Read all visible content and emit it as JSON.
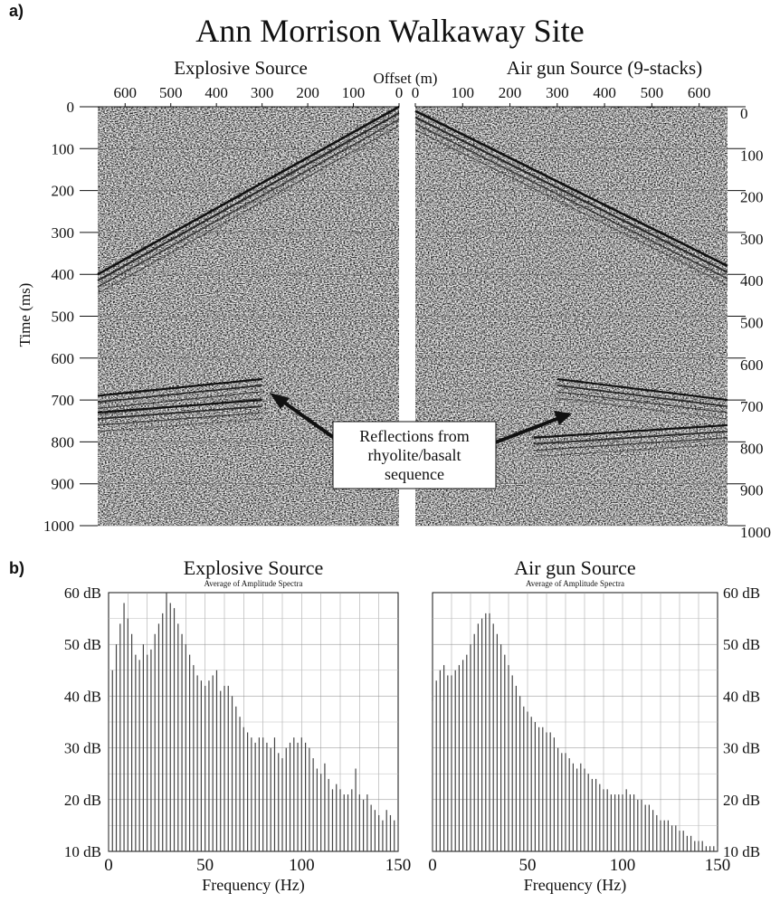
{
  "panel_a": {
    "label": "a)",
    "title": "Ann Morrison Walkaway Site",
    "left_title": "Explosive Source",
    "right_title": "Air gun Source (9-stacks)",
    "offset_label": "Offset (m)",
    "time_label": "Time (ms)",
    "annotation": [
      "Reflections from",
      "rhyolite/basalt",
      "sequence"
    ]
  },
  "panel_b": {
    "label": "b)"
  },
  "chart_data": [
    {
      "type": "heatmap",
      "title": "Explosive Source",
      "xlabel": "Offset (m)",
      "ylabel": "Time (ms)",
      "x_ticks": [
        "600",
        "500",
        "400",
        "300",
        "200",
        "100",
        "0"
      ],
      "y_ticks": [
        "0",
        "100",
        "200",
        "300",
        "400",
        "500",
        "600",
        "700",
        "800",
        "900",
        "1000"
      ],
      "xlim": [
        660,
        0
      ],
      "ylim": [
        0,
        1000
      ],
      "grid": true,
      "events": [
        {
          "kind": "first-arrival",
          "points": [
            [
              0,
              0
            ],
            [
              660,
              400
            ]
          ]
        },
        {
          "kind": "reflection",
          "points": [
            [
              660,
              690
            ],
            [
              300,
              650
            ]
          ]
        },
        {
          "kind": "reflection",
          "points": [
            [
              660,
              730
            ],
            [
              300,
              700
            ]
          ]
        }
      ]
    },
    {
      "type": "heatmap",
      "title": "Air gun Source (9-stacks)",
      "xlabel": "Offset (m)",
      "ylabel": "Time (ms)",
      "x_ticks": [
        "0",
        "100",
        "200",
        "300",
        "400",
        "500",
        "600"
      ],
      "y_ticks": [
        "0",
        "100",
        "200",
        "300",
        "400",
        "500",
        "600",
        "700",
        "800",
        "900",
        "1000"
      ],
      "xlim": [
        0,
        660
      ],
      "ylim": [
        0,
        1000
      ],
      "grid": true,
      "events": [
        {
          "kind": "first-arrival",
          "points": [
            [
              0,
              10
            ],
            [
              660,
              380
            ]
          ]
        },
        {
          "kind": "reflection",
          "points": [
            [
              300,
              650
            ],
            [
              660,
              700
            ]
          ]
        },
        {
          "kind": "reflection",
          "points": [
            [
              250,
              790
            ],
            [
              660,
              760
            ]
          ]
        }
      ]
    },
    {
      "type": "bar",
      "title": "Explosive Source",
      "subtitle": "Average of Amplitude Spectra",
      "xlabel": "Frequency (Hz)",
      "ylabel": "",
      "xlim": [
        0,
        150
      ],
      "ylim": [
        10,
        60
      ],
      "x_ticks": [
        "0",
        "50",
        "100",
        "150"
      ],
      "y_ticks": [
        "10 dB",
        "20 dB",
        "30 dB",
        "40 dB",
        "50 dB",
        "60 dB"
      ],
      "grid": true,
      "x": [
        0,
        2,
        4,
        6,
        8,
        10,
        12,
        14,
        16,
        18,
        20,
        22,
        24,
        26,
        28,
        30,
        32,
        34,
        36,
        38,
        40,
        42,
        44,
        46,
        48,
        50,
        52,
        54,
        56,
        58,
        60,
        62,
        64,
        66,
        68,
        70,
        72,
        74,
        76,
        78,
        80,
        82,
        84,
        86,
        88,
        90,
        92,
        94,
        96,
        98,
        100,
        102,
        104,
        106,
        108,
        110,
        112,
        114,
        116,
        118,
        120,
        122,
        124,
        126,
        128,
        130,
        132,
        134,
        136,
        138,
        140,
        142,
        144,
        146,
        148,
        150
      ],
      "values": [
        39,
        45,
        50,
        54,
        58,
        55,
        52,
        48,
        47,
        50,
        48,
        49,
        52,
        54,
        56,
        60,
        58,
        57,
        54,
        52,
        50,
        48,
        46,
        44,
        43,
        42,
        43,
        44,
        45,
        41,
        42,
        42,
        40,
        38,
        36,
        34,
        33,
        32,
        31,
        32,
        32,
        31,
        30,
        32,
        29,
        28,
        30,
        31,
        32,
        31,
        32,
        31,
        30,
        28,
        26,
        25,
        27,
        24,
        22,
        23,
        22,
        21,
        21,
        22,
        26,
        21,
        20,
        21,
        19,
        18,
        17,
        16,
        18,
        17,
        16,
        16
      ],
      "units": "dB"
    },
    {
      "type": "bar",
      "title": "Air gun Source",
      "subtitle": "Average of Amplitude Spectra",
      "xlabel": "Frequency (Hz)",
      "ylabel": "",
      "xlim": [
        0,
        150
      ],
      "ylim": [
        10,
        60
      ],
      "x_ticks": [
        "0",
        "50",
        "100",
        "150"
      ],
      "y_ticks": [
        "10 dB",
        "20 dB",
        "30 dB",
        "40 dB",
        "50 dB",
        "60 dB"
      ],
      "grid": true,
      "x": [
        0,
        2,
        4,
        6,
        8,
        10,
        12,
        14,
        16,
        18,
        20,
        22,
        24,
        26,
        28,
        30,
        32,
        34,
        36,
        38,
        40,
        42,
        44,
        46,
        48,
        50,
        52,
        54,
        56,
        58,
        60,
        62,
        64,
        66,
        68,
        70,
        72,
        74,
        76,
        78,
        80,
        82,
        84,
        86,
        88,
        90,
        92,
        94,
        96,
        98,
        100,
        102,
        104,
        106,
        108,
        110,
        112,
        114,
        116,
        118,
        120,
        122,
        124,
        126,
        128,
        130,
        132,
        134,
        136,
        138,
        140,
        142,
        144,
        146,
        148,
        150
      ],
      "values": [
        39,
        43,
        45,
        46,
        44,
        44,
        45,
        46,
        47,
        48,
        50,
        52,
        54,
        55,
        56,
        56,
        54,
        52,
        50,
        48,
        46,
        44,
        42,
        40,
        38,
        37,
        36,
        35,
        34,
        34,
        33,
        33,
        32,
        30,
        29,
        29,
        28,
        27,
        26,
        27,
        26,
        25,
        24,
        24,
        23,
        22,
        22,
        21,
        21,
        21,
        21,
        22,
        21,
        21,
        20,
        20,
        19,
        19,
        18,
        17,
        16,
        16,
        16,
        15,
        15,
        14,
        14,
        13,
        13,
        12,
        12,
        12,
        11,
        11,
        11,
        11
      ],
      "units": "dB"
    }
  ]
}
